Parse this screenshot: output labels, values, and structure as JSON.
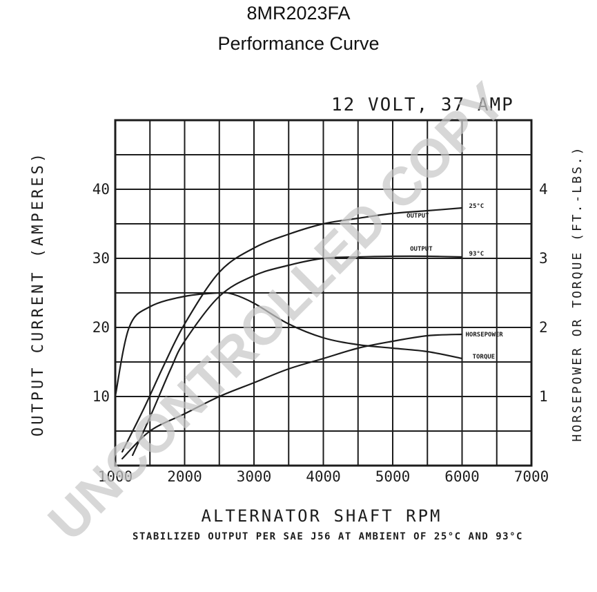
{
  "title": "8MR2023FA",
  "subtitle": "Performance Curve",
  "watermark": "UNCONTROLLED COPY",
  "chart_data": {
    "type": "line",
    "rating_label": "12 VOLT, 37 AMP",
    "xlabel": "ALTERNATOR SHAFT RPM",
    "ylabel_left": "OUTPUT CURRENT (AMPERES)",
    "ylabel_right": "HORSEPOWER OR TORQUE (FT.-LBS.)",
    "note": "STABILIZED OUTPUT PER SAE J56 AT AMBIENT OF 25°C AND 93°C",
    "xlim": [
      1000,
      7000
    ],
    "ylim_left": [
      0,
      50
    ],
    "ylim_right": [
      0,
      5
    ],
    "grid": true,
    "x_ticks": [
      {
        "value": 1000,
        "label": "1000"
      },
      {
        "value": 2000,
        "label": "2000"
      },
      {
        "value": 3000,
        "label": "3000"
      },
      {
        "value": 4000,
        "label": "4000"
      },
      {
        "value": 5000,
        "label": "5000"
      },
      {
        "value": 6000,
        "label": "6000"
      },
      {
        "value": 7000,
        "label": "7000"
      }
    ],
    "y_left_ticks": [
      {
        "value": 10,
        "label": "10"
      },
      {
        "value": 20,
        "label": "20"
      },
      {
        "value": 30,
        "label": "30"
      },
      {
        "value": 40,
        "label": "40"
      }
    ],
    "y_right_ticks": [
      {
        "value": 1,
        "label": "1"
      },
      {
        "value": 2,
        "label": "2"
      },
      {
        "value": 3,
        "label": "3"
      },
      {
        "value": 4,
        "label": "4"
      }
    ],
    "series": [
      {
        "name": "OUTPUT 25°C",
        "label": "OUTPUT",
        "label_temp": "25°C",
        "axis": "left",
        "x": [
          1100,
          1400,
          1700,
          2000,
          2500,
          3000,
          3500,
          4000,
          4500,
          5000,
          5500,
          6000
        ],
        "y": [
          2,
          8,
          14.5,
          20.5,
          28,
          31.5,
          33.5,
          35,
          35.8,
          36.5,
          36.9,
          37.3
        ]
      },
      {
        "name": "OUTPUT 93°C",
        "label": "OUTPUT",
        "label_temp": "93°C",
        "axis": "left",
        "x": [
          1250,
          1500,
          1800,
          2000,
          2500,
          3000,
          3500,
          4000,
          4500,
          5000,
          5500,
          6000
        ],
        "y": [
          1.5,
          7,
          14,
          18,
          24.5,
          27.5,
          29,
          30,
          30.2,
          30.3,
          30.3,
          30.2
        ]
      },
      {
        "name": "HORSEPOWER",
        "label": "HORSEPOWER",
        "axis": "right",
        "x": [
          1100,
          1500,
          2000,
          2500,
          3000,
          3500,
          4000,
          4500,
          5000,
          5500,
          6000
        ],
        "y": [
          0.1,
          0.5,
          0.75,
          1.0,
          1.2,
          1.4,
          1.55,
          1.7,
          1.8,
          1.88,
          1.9
        ]
      },
      {
        "name": "TORQUE",
        "label": "TORQUE",
        "axis": "right",
        "x": [
          1000,
          1200,
          1500,
          2000,
          2500,
          2700,
          3000,
          3500,
          4000,
          4500,
          5000,
          5500,
          6000
        ],
        "y": [
          1.0,
          2.0,
          2.3,
          2.45,
          2.5,
          2.48,
          2.35,
          2.05,
          1.85,
          1.75,
          1.7,
          1.65,
          1.55
        ]
      }
    ]
  },
  "colors": {
    "ink": "#1c1c1c",
    "grid": "#1c1c1c",
    "watermark": "#c8c8c8"
  }
}
